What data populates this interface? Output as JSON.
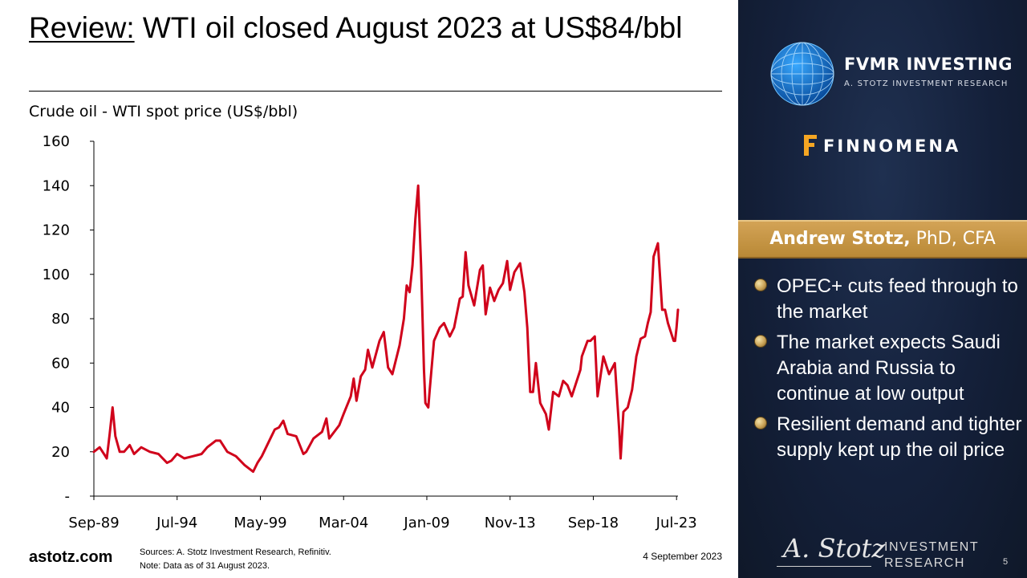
{
  "slide": {
    "title_prefix": "Review:",
    "title_rest": " WTI oil closed August 2023 at US$84/bbl",
    "footer_site": "astotz.com",
    "sources": "Sources: A. Stotz Investment Research, Refinitiv.",
    "note": "Note: Data as of 31 August 2023.",
    "date": "4 September 2023",
    "page": "5"
  },
  "panel": {
    "fvmr_name": "FVMR INVESTING",
    "fvmr_sub": "A. STOTZ INVESTMENT RESEARCH",
    "finnomena_name": "FINNOMENA",
    "author_name": "Andrew Stotz,",
    "author_creds": " PhD, CFA",
    "bullets": [
      "OPEC+ cuts feed through to the market",
      "The market expects Saudi Arabia and Russia to continue at low output",
      "Resilient demand and tighter supply kept up the oil price"
    ],
    "signature": "A. Stotz",
    "ir_line1": "INVESTMENT",
    "ir_line2": "RESEARCH",
    "icons": [
      "globe-icon",
      "finnomena-f-icon",
      "bullet-dot-icon"
    ],
    "colors": {
      "panel_bg": "#14203a",
      "author_bar": "#c79a4a",
      "bullet": "#c9a257"
    }
  },
  "chart_data": {
    "type": "line",
    "title": "Crude oil - WTI spot price (US$/bbl)",
    "xlabel": "",
    "ylabel": "",
    "ylim": [
      0,
      160
    ],
    "yticks": [
      {
        "value": 0,
        "label": "-"
      },
      {
        "value": 20,
        "label": "20"
      },
      {
        "value": 40,
        "label": "40"
      },
      {
        "value": 60,
        "label": "60"
      },
      {
        "value": 80,
        "label": "80"
      },
      {
        "value": 100,
        "label": "100"
      },
      {
        "value": 120,
        "label": "120"
      },
      {
        "value": 140,
        "label": "140"
      },
      {
        "value": 160,
        "label": "160"
      }
    ],
    "xlim": [
      "1989-09",
      "2023-08"
    ],
    "xticks": [
      {
        "date": "1989-09",
        "label": "Sep-89"
      },
      {
        "date": "1994-07",
        "label": "Jul-94"
      },
      {
        "date": "1999-05",
        "label": "May-99"
      },
      {
        "date": "2004-03",
        "label": "Mar-04"
      },
      {
        "date": "2009-01",
        "label": "Jan-09"
      },
      {
        "date": "2013-11",
        "label": "Nov-13"
      },
      {
        "date": "2018-09",
        "label": "Sep-18"
      },
      {
        "date": "2023-07",
        "label": "Jul-23"
      }
    ],
    "grid": false,
    "legend": "none",
    "series": [
      {
        "color": "#d0021b",
        "points": [
          [
            "1989-09",
            20
          ],
          [
            "1990-01",
            22
          ],
          [
            "1990-06",
            17
          ],
          [
            "1990-08",
            28
          ],
          [
            "1990-10",
            40
          ],
          [
            "1990-12",
            27
          ],
          [
            "1991-03",
            20
          ],
          [
            "1991-06",
            20
          ],
          [
            "1991-10",
            23
          ],
          [
            "1992-01",
            19
          ],
          [
            "1992-06",
            22
          ],
          [
            "1992-12",
            20
          ],
          [
            "1993-06",
            19
          ],
          [
            "1993-12",
            15
          ],
          [
            "1994-03",
            16
          ],
          [
            "1994-07",
            19
          ],
          [
            "1994-12",
            17
          ],
          [
            "1995-06",
            18
          ],
          [
            "1995-12",
            19
          ],
          [
            "1996-04",
            22
          ],
          [
            "1996-10",
            25
          ],
          [
            "1997-01",
            25
          ],
          [
            "1997-06",
            20
          ],
          [
            "1997-12",
            18
          ],
          [
            "1998-06",
            14
          ],
          [
            "1998-12",
            11
          ],
          [
            "1999-03",
            15
          ],
          [
            "1999-06",
            18
          ],
          [
            "1999-12",
            26
          ],
          [
            "2000-03",
            30
          ],
          [
            "2000-06",
            31
          ],
          [
            "2000-09",
            34
          ],
          [
            "2000-12",
            28
          ],
          [
            "2001-06",
            27
          ],
          [
            "2001-11",
            19
          ],
          [
            "2002-01",
            20
          ],
          [
            "2002-06",
            26
          ],
          [
            "2002-12",
            29
          ],
          [
            "2003-03",
            35
          ],
          [
            "2003-05",
            26
          ],
          [
            "2003-12",
            32
          ],
          [
            "2004-03",
            37
          ],
          [
            "2004-08",
            45
          ],
          [
            "2004-10",
            53
          ],
          [
            "2004-12",
            43
          ],
          [
            "2005-03",
            54
          ],
          [
            "2005-06",
            57
          ],
          [
            "2005-08",
            66
          ],
          [
            "2005-11",
            58
          ],
          [
            "2006-04",
            70
          ],
          [
            "2006-07",
            74
          ],
          [
            "2006-10",
            58
          ],
          [
            "2007-01",
            55
          ],
          [
            "2007-06",
            68
          ],
          [
            "2007-09",
            80
          ],
          [
            "2007-11",
            95
          ],
          [
            "2008-01",
            92
          ],
          [
            "2008-03",
            104
          ],
          [
            "2008-05",
            125
          ],
          [
            "2008-07",
            140
          ],
          [
            "2008-09",
            104
          ],
          [
            "2008-11",
            57
          ],
          [
            "2008-12",
            42
          ],
          [
            "2009-02",
            40
          ],
          [
            "2009-03",
            48
          ],
          [
            "2009-06",
            70
          ],
          [
            "2009-10",
            76
          ],
          [
            "2010-01",
            78
          ],
          [
            "2010-05",
            72
          ],
          [
            "2010-08",
            76
          ],
          [
            "2010-12",
            89
          ],
          [
            "2011-02",
            90
          ],
          [
            "2011-04",
            110
          ],
          [
            "2011-06",
            95
          ],
          [
            "2011-10",
            86
          ],
          [
            "2012-02",
            102
          ],
          [
            "2012-04",
            104
          ],
          [
            "2012-06",
            82
          ],
          [
            "2012-09",
            94
          ],
          [
            "2012-12",
            88
          ],
          [
            "2013-03",
            93
          ],
          [
            "2013-06",
            96
          ],
          [
            "2013-09",
            106
          ],
          [
            "2013-11",
            93
          ],
          [
            "2014-02",
            101
          ],
          [
            "2014-06",
            105
          ],
          [
            "2014-09",
            92
          ],
          [
            "2014-11",
            76
          ],
          [
            "2015-01",
            47
          ],
          [
            "2015-03",
            47
          ],
          [
            "2015-05",
            60
          ],
          [
            "2015-08",
            42
          ],
          [
            "2015-12",
            37
          ],
          [
            "2016-02",
            30
          ],
          [
            "2016-05",
            47
          ],
          [
            "2016-09",
            45
          ],
          [
            "2016-12",
            52
          ],
          [
            "2017-03",
            50
          ],
          [
            "2017-06",
            45
          ],
          [
            "2017-12",
            57
          ],
          [
            "2018-01",
            63
          ],
          [
            "2018-05",
            70
          ],
          [
            "2018-07",
            70
          ],
          [
            "2018-10",
            72
          ],
          [
            "2018-12",
            45
          ],
          [
            "2019-04",
            63
          ],
          [
            "2019-08",
            55
          ],
          [
            "2019-12",
            60
          ],
          [
            "2020-03",
            30
          ],
          [
            "2020-04",
            17
          ],
          [
            "2020-06",
            38
          ],
          [
            "2020-09",
            40
          ],
          [
            "2020-12",
            48
          ],
          [
            "2021-03",
            63
          ],
          [
            "2021-06",
            71
          ],
          [
            "2021-09",
            72
          ],
          [
            "2021-11",
            78
          ],
          [
            "2022-01",
            83
          ],
          [
            "2022-03",
            108
          ],
          [
            "2022-06",
            114
          ],
          [
            "2022-09",
            84
          ],
          [
            "2022-11",
            84
          ],
          [
            "2023-01",
            78
          ],
          [
            "2023-03",
            74
          ],
          [
            "2023-05",
            70
          ],
          [
            "2023-06",
            70
          ],
          [
            "2023-07",
            76
          ],
          [
            "2023-08",
            84
          ]
        ]
      }
    ]
  }
}
